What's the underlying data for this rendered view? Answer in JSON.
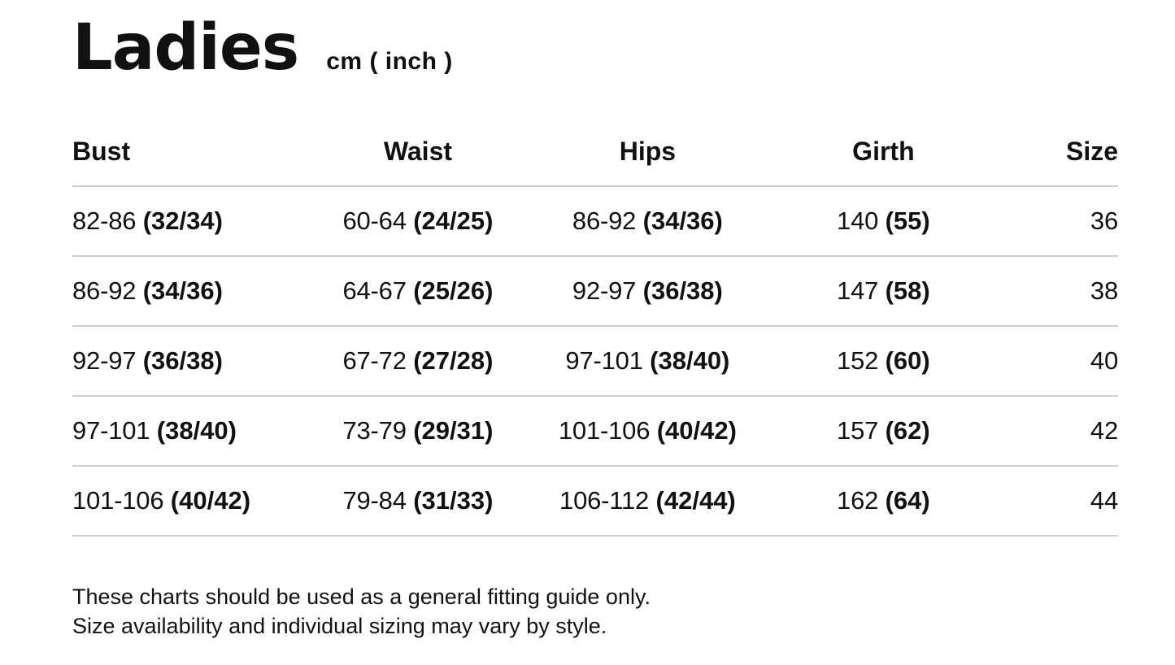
{
  "title": {
    "text": "Ladies",
    "unit": "cm ( inch )"
  },
  "table": {
    "headers": [
      "Bust",
      "Waist",
      "Hips",
      "Girth",
      "Size"
    ],
    "rows": [
      {
        "bust": {
          "cm": "82-86",
          "inch": "(32/34)"
        },
        "waist": {
          "cm": "60-64",
          "inch": "(24/25)"
        },
        "hips": {
          "cm": "86-92",
          "inch": "(34/36)"
        },
        "girth": {
          "cm": "140",
          "inch": "(55)"
        },
        "size": "36"
      },
      {
        "bust": {
          "cm": "86-92",
          "inch": "(34/36)"
        },
        "waist": {
          "cm": "64-67",
          "inch": "(25/26)"
        },
        "hips": {
          "cm": "92-97",
          "inch": "(36/38)"
        },
        "girth": {
          "cm": "147",
          "inch": "(58)"
        },
        "size": "38"
      },
      {
        "bust": {
          "cm": "92-97",
          "inch": "(36/38)"
        },
        "waist": {
          "cm": "67-72",
          "inch": "(27/28)"
        },
        "hips": {
          "cm": "97-101",
          "inch": "(38/40)"
        },
        "girth": {
          "cm": "152",
          "inch": "(60)"
        },
        "size": "40"
      },
      {
        "bust": {
          "cm": "97-101",
          "inch": "(38/40)"
        },
        "waist": {
          "cm": "73-79",
          "inch": "(29/31)"
        },
        "hips": {
          "cm": "101-106",
          "inch": "(40/42)"
        },
        "girth": {
          "cm": "157",
          "inch": "(62)"
        },
        "size": "42"
      },
      {
        "bust": {
          "cm": "101-106",
          "inch": "(40/42)"
        },
        "waist": {
          "cm": "79-84",
          "inch": "(31/33)"
        },
        "hips": {
          "cm": "106-112",
          "inch": "(42/44)"
        },
        "girth": {
          "cm": "162",
          "inch": "(64)"
        },
        "size": "44"
      }
    ]
  },
  "footer": {
    "line1": "These charts should be used as a general fitting guide only.",
    "line2": "Size availability and individual sizing may vary by style."
  },
  "colors": {
    "text": "#111111",
    "divider": "#cccccc",
    "background": "#ffffff"
  }
}
